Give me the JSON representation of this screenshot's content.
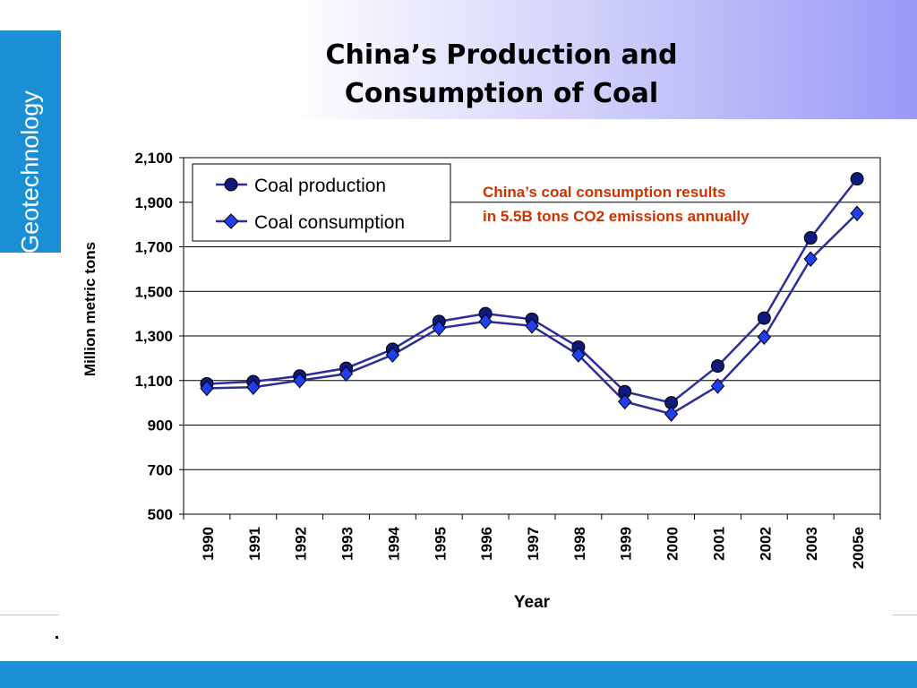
{
  "slide": {
    "title_line1": "China’s Production and",
    "title_line2": "Consumption of Coal",
    "side_tab_label": "Geotechnology"
  },
  "colors": {
    "accent_blue": "#1a8fd6",
    "production_line": "#2e2e99",
    "production_marker": "#0f1a7a",
    "consumption_line": "#2e2e99",
    "consumption_marker": "#1f3ff0",
    "annotation_text": "#cc3300",
    "gridline": "#000000"
  },
  "chart_data": {
    "type": "line",
    "title": "",
    "xlabel": "Year",
    "ylabel": "Million metric tons",
    "ylim": [
      500,
      2100
    ],
    "y_ticks": [
      500,
      700,
      900,
      1100,
      1300,
      1500,
      1700,
      1900,
      2100
    ],
    "y_tick_labels": [
      "500",
      "700",
      "900",
      "1,100",
      "1,300",
      "1,500",
      "1,700",
      "1,900",
      "2,100"
    ],
    "categories": [
      "1990",
      "1991",
      "1992",
      "1993",
      "1994",
      "1995",
      "1996",
      "1997",
      "1998",
      "1999",
      "2000",
      "2001",
      "2002",
      "2003",
      "2005e"
    ],
    "grid": true,
    "legend_position": "top-left",
    "series": [
      {
        "name": "Coal production",
        "marker": "circle",
        "values": [
          1085,
          1095,
          1120,
          1155,
          1240,
          1365,
          1400,
          1375,
          1250,
          1050,
          1000,
          1165,
          1380,
          1740,
          2005
        ]
      },
      {
        "name": "Coal consumption",
        "marker": "diamond",
        "values": [
          1065,
          1070,
          1100,
          1130,
          1215,
          1335,
          1365,
          1345,
          1215,
          1005,
          950,
          1075,
          1295,
          1645,
          1850
        ]
      }
    ],
    "annotation": {
      "line1": "China’s coal consumption results",
      "line2": "in 5.5B tons CO2 emissions annually"
    }
  }
}
